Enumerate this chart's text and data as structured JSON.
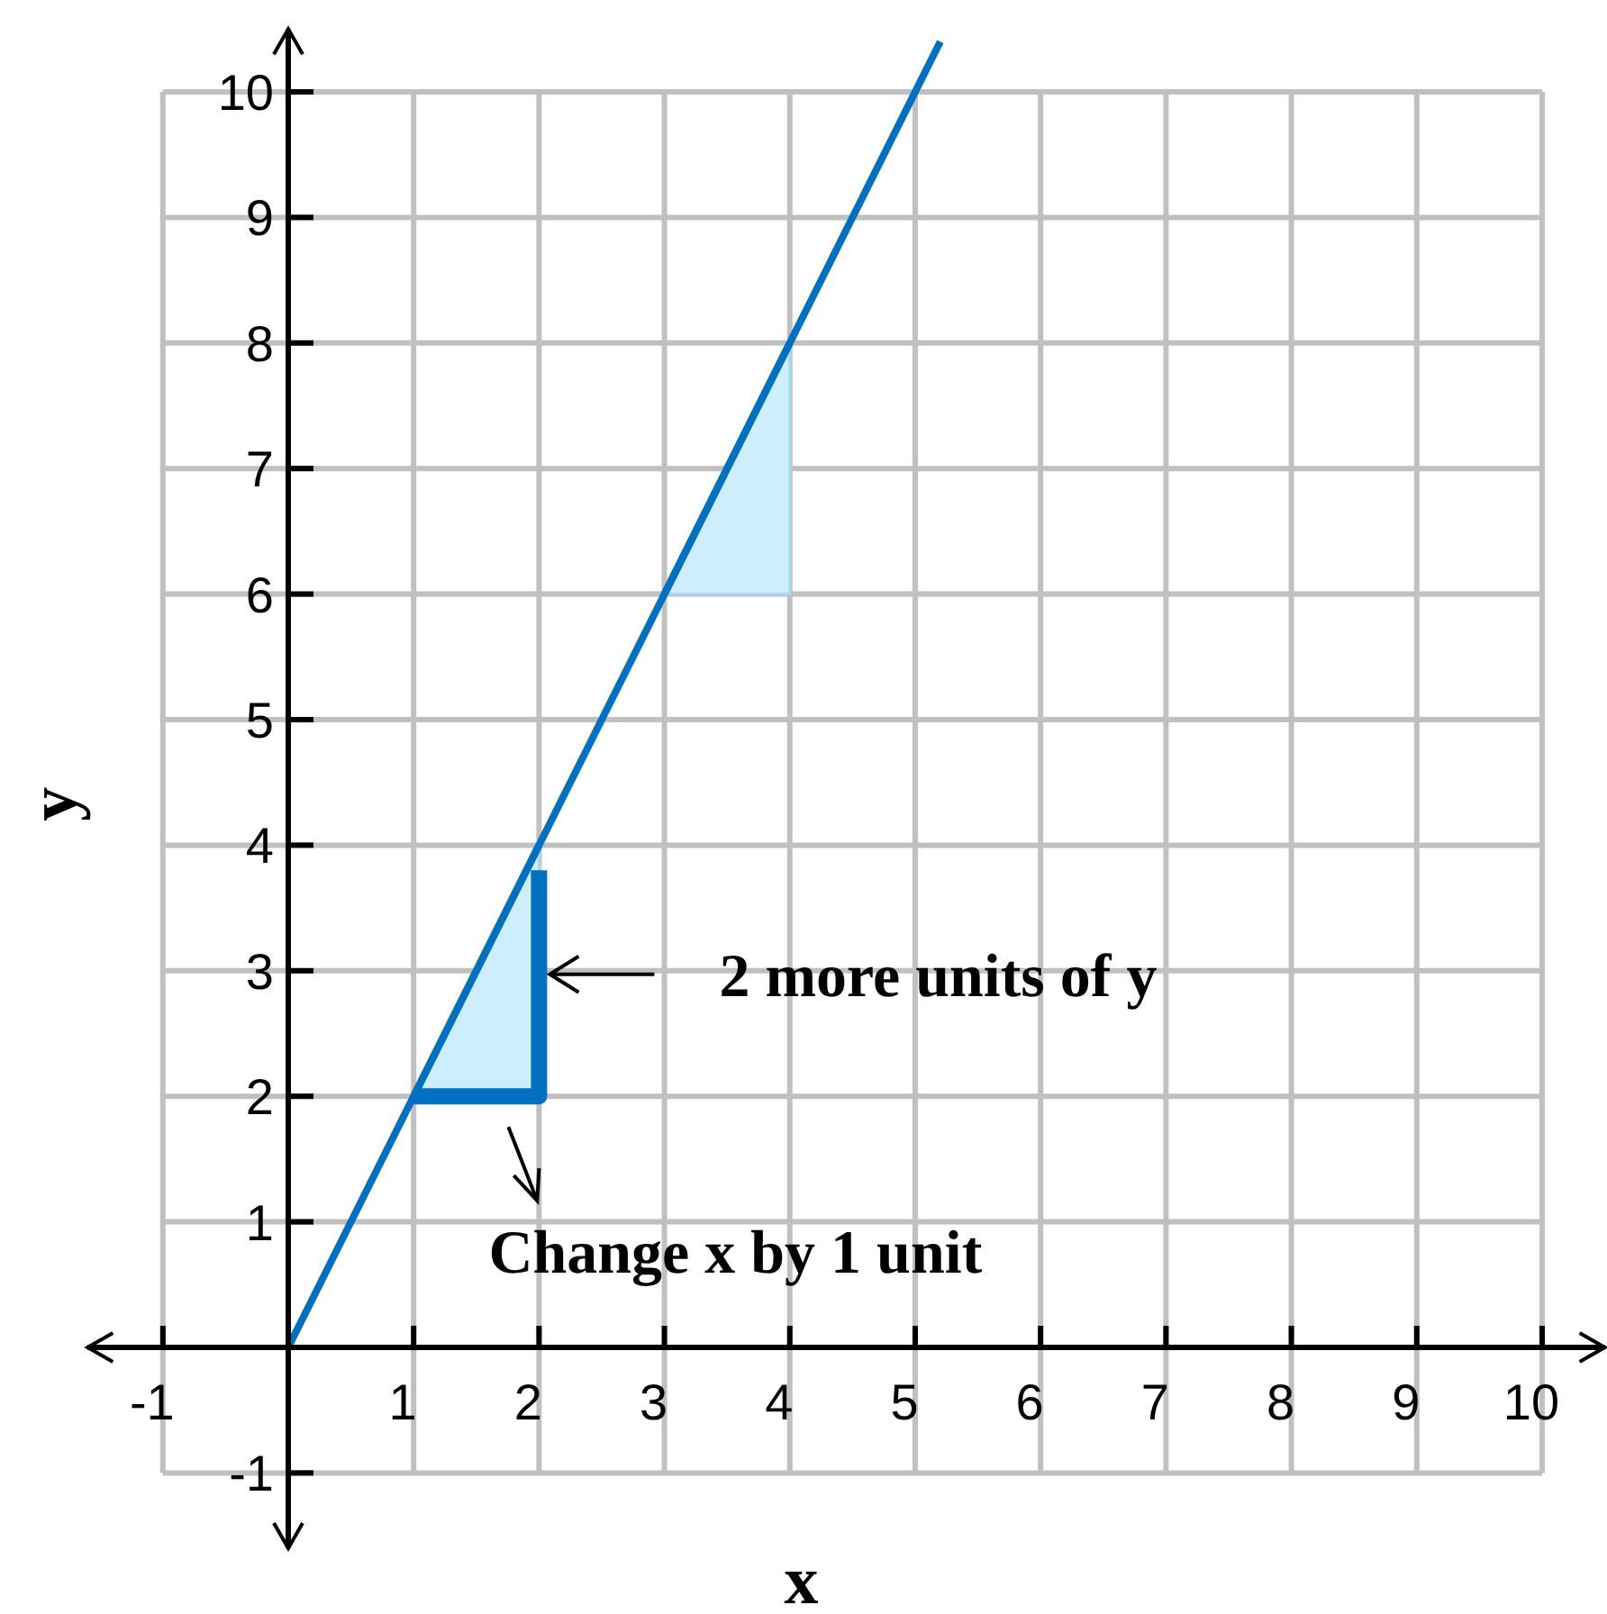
{
  "chart_data": {
    "type": "line",
    "xlabel": "x",
    "ylabel": "y",
    "xlim": [
      -1.6,
      10.5
    ],
    "ylim": [
      -1.6,
      10.5
    ],
    "xticks": [
      -1,
      1,
      2,
      3,
      4,
      5,
      6,
      7,
      8,
      9,
      10
    ],
    "yticks": [
      -1,
      1,
      2,
      3,
      4,
      5,
      6,
      7,
      8,
      9,
      10
    ],
    "grid": true,
    "series": [
      {
        "type": "line",
        "color": "#0070c0",
        "x": [
          1,
          2
        ],
        "values": [
          2,
          4
        ],
        "lower": [
          2,
          2
        ],
        "upper": [
          2,
          4
        ]
      },
      {
        "type": "line",
        "color": "#0070c0",
        "x": [
          3,
          4
        ],
        "values": [
          6,
          8
        ],
        "lower": [
          6,
          6
        ],
        "upper": [
          6,
          8
        ]
      },
      {
        "color": "#0070c0",
        "x": [
          0,
          5.2
        ],
        "values": [
          0,
          10.4
        ]
      },
      {
        "type": "step",
        "color": "#0070c0",
        "x": [
          1,
          2
        ],
        "values": [
          2,
          3.8
        ]
      }
    ],
    "annotations": [
      {
        "text": "2 more units of y",
        "x": 2,
        "y": 3
      },
      {
        "text": "Change x by 1 unit",
        "x": 2,
        "y": 2
      }
    ]
  }
}
